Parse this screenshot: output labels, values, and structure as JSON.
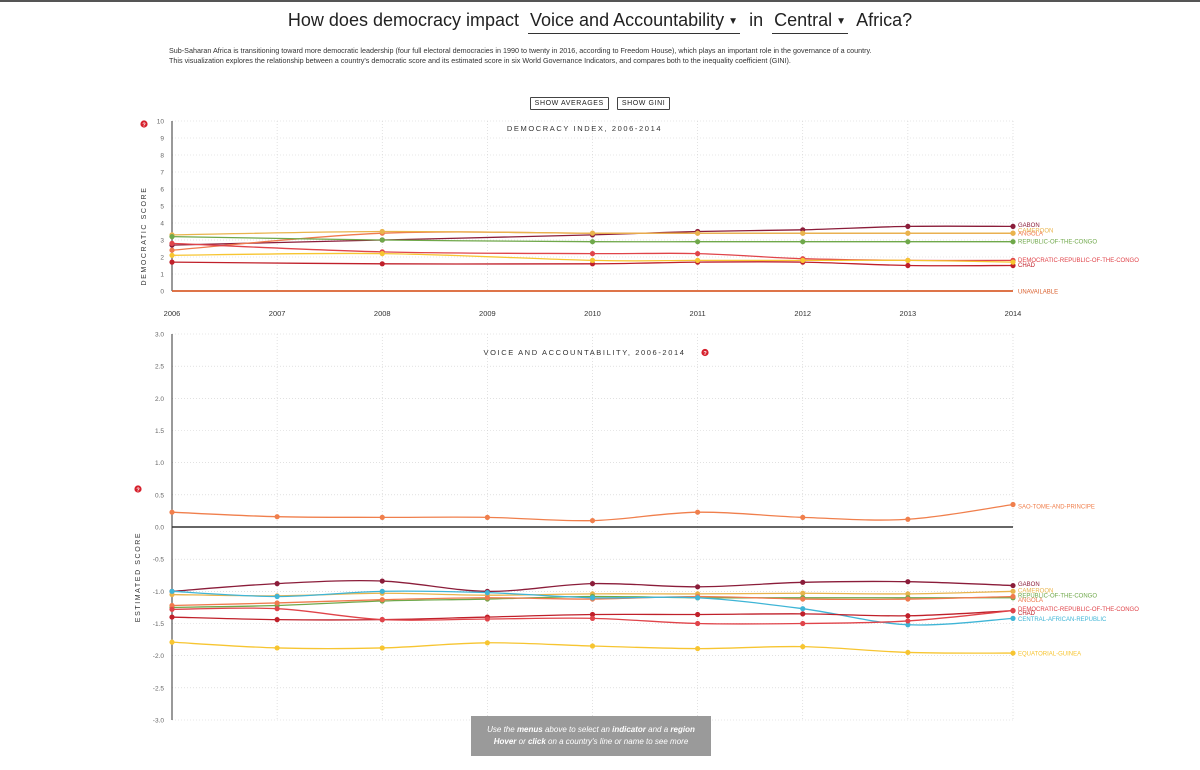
{
  "header": {
    "title_prefix": "How does democracy impact",
    "indicator": "Voice and Accountability",
    "title_mid": "in",
    "region": "Central",
    "title_suffix": "Africa?"
  },
  "intro": {
    "line1": "Sub-Saharan Africa is transitioning toward more democratic leadership (four full electoral democracies in 1990 to twenty in 2016, according to Freedom House), which plays an important role in the governance of a country.",
    "line2": "This visualization explores the relationship between a country's democratic score and its estimated score in six World Governance Indicators, and compares both to the inequality coefficient (GINI)."
  },
  "buttons": {
    "show_averages": "SHOW AVERAGES",
    "show_gini": "SHOW GINI"
  },
  "help_icon": "question-icon",
  "tooltip": {
    "line1_a": "Use the",
    "line1_b": "menus",
    "line1_c": "above to select an",
    "line1_d": "indicator",
    "line1_e": "and a",
    "line1_f": "region",
    "line2_a": "Hover",
    "line2_b": "or",
    "line2_c": "click",
    "line2_d": "on a country's line or name to see more"
  },
  "colors": {
    "gabon": "#8b1d3a",
    "angola": "#ef7a4e",
    "cameroon": "#e9b44c",
    "republic_of_the_congo": "#6fa84a",
    "dr_congo": "#e0444a",
    "chad": "#c0202a",
    "central_african_republic": "#3fb5d6",
    "sao_tome": "#f07f4c",
    "equatorial_guinea": "#f7c531",
    "unavailable": "#d9602f",
    "grid": "#cfcfcf",
    "zero_line": "#333333"
  },
  "chart_data": [
    {
      "type": "line",
      "title": "DEMOCRACY INDEX, 2006-2014",
      "ylabel": "DEMOCRATIC SCORE",
      "x": [
        2006,
        2007,
        2008,
        2009,
        2010,
        2011,
        2012,
        2013,
        2014
      ],
      "x_tick_labels": [
        "2006",
        "2007",
        "2008",
        "2009",
        "2010",
        "2011",
        "2012",
        "2013",
        "2014"
      ],
      "ylim": [
        0,
        10
      ],
      "yticks": [
        0,
        1,
        2,
        3,
        4,
        5,
        6,
        7,
        8,
        9,
        10
      ],
      "grid": true,
      "series": [
        {
          "name": "GABON",
          "color_key": "gabon",
          "values": [
            2.7,
            null,
            3.0,
            null,
            3.3,
            3.5,
            3.6,
            3.8,
            3.8
          ]
        },
        {
          "name": "ANGOLA",
          "color_key": "angola",
          "values": [
            2.4,
            null,
            3.4,
            null,
            3.4,
            3.4,
            3.4,
            3.4,
            3.4
          ]
        },
        {
          "name": "CAMEROON",
          "color_key": "cameroon",
          "values": [
            3.3,
            null,
            3.5,
            null,
            3.4,
            3.4,
            3.4,
            3.4,
            3.4
          ]
        },
        {
          "name": "REPUBLIC-OF-THE-CONGO",
          "color_key": "republic_of_the_congo",
          "values": [
            3.2,
            null,
            3.0,
            null,
            2.9,
            2.9,
            2.9,
            2.9,
            2.9
          ]
        },
        {
          "name": "DEMOCRATIC-REPUBLIC-OF-THE-CONGO",
          "color_key": "dr_congo",
          "values": [
            2.8,
            null,
            2.3,
            null,
            2.2,
            2.2,
            1.9,
            1.8,
            1.8
          ]
        },
        {
          "name": "CHAD",
          "color_key": "chad",
          "values": [
            1.7,
            null,
            1.6,
            null,
            1.6,
            1.7,
            1.7,
            1.5,
            1.5
          ]
        },
        {
          "name": "EQUATORIAL-GUINEA",
          "color_key": "equatorial_guinea",
          "values": [
            2.1,
            null,
            2.2,
            null,
            1.8,
            1.8,
            1.8,
            1.8,
            1.7
          ]
        },
        {
          "name": "UNAVAILABLE",
          "color_key": "unavailable",
          "values": [
            0,
            0,
            0,
            0,
            0,
            0,
            0,
            0,
            0
          ]
        }
      ],
      "end_labels": [
        {
          "text": "GABON",
          "color_key": "gabon",
          "value": 3.9
        },
        {
          "text": "CAMEROON",
          "color_key": "cameroon",
          "value": 3.6
        },
        {
          "text": "ANGOLA",
          "color_key": "angola",
          "value": 3.4
        },
        {
          "text": "REPUBLIC-OF-THE-CONGO",
          "color_key": "republic_of_the_congo",
          "value": 2.95
        },
        {
          "text": "DEMOCRATIC-REPUBLIC-OF-THE-CONGO",
          "color_key": "dr_congo",
          "value": 1.85
        },
        {
          "text": "CHAD",
          "color_key": "chad",
          "value": 1.55
        },
        {
          "text": "UNAVAILABLE",
          "color_key": "unavailable",
          "value": 0
        }
      ]
    },
    {
      "type": "line",
      "title": "VOICE AND ACCOUNTABILITY, 2006-2014",
      "ylabel": "ESTIMATED SCORE",
      "x": [
        2006,
        2007,
        2008,
        2009,
        2010,
        2011,
        2012,
        2013,
        2014
      ],
      "ylim": [
        -3.0,
        3.0
      ],
      "yticks": [
        -3.0,
        -2.5,
        -2.0,
        -1.5,
        -1.0,
        -0.5,
        0.0,
        0.5,
        1.0,
        1.5,
        2.0,
        2.5,
        3.0
      ],
      "ytick_labels": [
        "-3.0",
        "-2.5",
        "-2.0",
        "-1.5",
        "-1.0",
        "-0.5",
        "0.0",
        "0.5",
        "1.0",
        "1.5",
        "2.0",
        "2.5",
        "3.0"
      ],
      "grid": true,
      "zero_line": true,
      "series": [
        {
          "name": "SAO-TOME-AND-PRINCIPE",
          "color_key": "sao_tome",
          "values": [
            0.23,
            0.16,
            0.15,
            0.15,
            0.1,
            0.23,
            0.15,
            0.12,
            0.35
          ]
        },
        {
          "name": "GABON",
          "color_key": "gabon",
          "values": [
            -1.0,
            -0.88,
            -0.84,
            -1.0,
            -0.88,
            -0.93,
            -0.86,
            -0.85,
            -0.91
          ]
        },
        {
          "name": "CAMEROON",
          "color_key": "cameroon",
          "values": [
            -1.05,
            -1.07,
            -1.03,
            -1.06,
            -1.04,
            -1.04,
            -1.03,
            -1.04,
            -1.0
          ]
        },
        {
          "name": "REPUBLIC-OF-THE-CONGO",
          "color_key": "republic_of_the_congo",
          "values": [
            -1.25,
            -1.22,
            -1.15,
            -1.12,
            -1.08,
            -1.1,
            -1.1,
            -1.1,
            -1.1
          ]
        },
        {
          "name": "ANGOLA",
          "color_key": "angola",
          "values": [
            -1.22,
            -1.18,
            -1.13,
            -1.1,
            -1.12,
            -1.08,
            -1.12,
            -1.12,
            -1.08
          ]
        },
        {
          "name": "CENTRAL-AFRICAN-REPUBLIC",
          "color_key": "central_african_republic",
          "values": [
            -1.0,
            -1.08,
            -1.0,
            -1.02,
            -1.1,
            -1.1,
            -1.27,
            -1.52,
            -1.42
          ]
        },
        {
          "name": "CHAD",
          "color_key": "chad",
          "values": [
            -1.4,
            -1.44,
            -1.44,
            -1.4,
            -1.36,
            -1.36,
            -1.35,
            -1.38,
            -1.3
          ]
        },
        {
          "name": "DEMOCRATIC-REPUBLIC-OF-THE-CONGO",
          "color_key": "dr_congo",
          "values": [
            -1.28,
            -1.27,
            -1.44,
            -1.43,
            -1.42,
            -1.5,
            -1.5,
            -1.46,
            -1.3
          ]
        },
        {
          "name": "EQUATORIAL-GUINEA",
          "color_key": "equatorial_guinea",
          "values": [
            -1.79,
            -1.88,
            -1.88,
            -1.8,
            -1.85,
            -1.89,
            -1.86,
            -1.95,
            -1.96
          ]
        }
      ],
      "end_labels": [
        {
          "text": "SAO-TOME-AND-PRINCIPE",
          "color_key": "sao_tome",
          "value": 0.33
        },
        {
          "text": "GABON",
          "color_key": "gabon",
          "value": -0.88
        },
        {
          "text": "CAMEROON",
          "color_key": "cameroon",
          "value": -0.98
        },
        {
          "text": "REPUBLIC-OF-THE-CONGO",
          "color_key": "republic_of_the_congo",
          "value": -1.06
        },
        {
          "text": "ANGOLA",
          "color_key": "angola",
          "value": -1.13
        },
        {
          "text": "DEMOCRATIC-REPUBLIC-OF-THE-CONGO",
          "color_key": "dr_congo",
          "value": -1.27
        },
        {
          "text": "CHAD",
          "color_key": "chad",
          "value": -1.33
        },
        {
          "text": "CENTRAL-AFRICAN-REPUBLIC",
          "color_key": "central_african_republic",
          "value": -1.42
        },
        {
          "text": "EQUATORIAL-GUINEA",
          "color_key": "equatorial_guinea",
          "value": -1.96
        }
      ]
    }
  ]
}
